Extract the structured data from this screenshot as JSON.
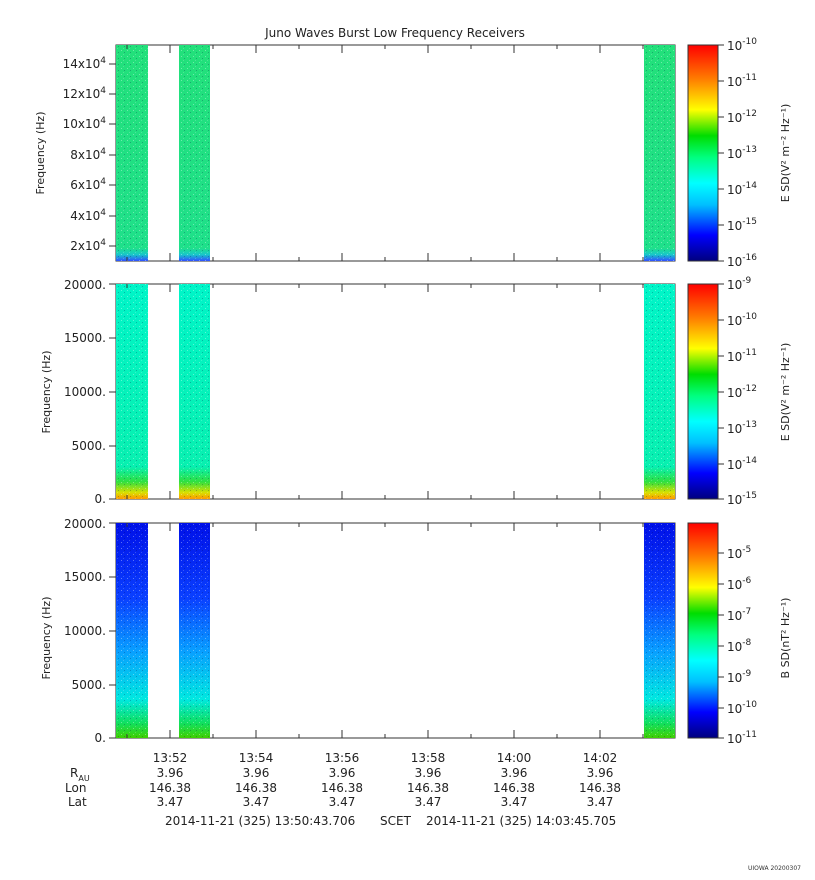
{
  "title": "Juno Waves Burst Low Frequency Receivers",
  "stamp": "UIOWA 20200307",
  "footer": {
    "start": "2014-11-21 (325) 13:50:43.706",
    "scet": "SCET",
    "end": "2014-11-21 (325) 14:03:45.705"
  },
  "ephemeris": {
    "labels": [
      "R_AU",
      "Lon",
      "Lat"
    ],
    "times": [
      "13:52",
      "13:54",
      "13:56",
      "13:58",
      "14:00",
      "14:02"
    ],
    "R_AU": [
      "3.96",
      "3.96",
      "3.96",
      "3.96",
      "3.96",
      "3.96"
    ],
    "Lon": [
      "146.38",
      "146.38",
      "146.38",
      "146.38",
      "146.38",
      "146.38"
    ],
    "Lat": [
      "3.47",
      "3.47",
      "3.47",
      "3.47",
      "3.47",
      "3.47"
    ]
  },
  "colors": {
    "colormap": [
      "#00007f",
      "#0000ff",
      "#00bfff",
      "#00ffff",
      "#00ff7f",
      "#00dd00",
      "#ffff00",
      "#ff7f00",
      "#ff0000"
    ]
  },
  "chart_data": [
    {
      "type": "heatmap",
      "panel": "E low-frequency top",
      "ylabel": "Frequency (Hz)",
      "y_ticks": [
        {
          "value": 20000,
          "mant": "2x10",
          "exp": "4"
        },
        {
          "value": 40000,
          "mant": "4x10",
          "exp": "4"
        },
        {
          "value": 60000,
          "mant": "6x10",
          "exp": "4"
        },
        {
          "value": 80000,
          "mant": "8x10",
          "exp": "4"
        },
        {
          "value": 100000,
          "mant": "10x10",
          "exp": "4"
        },
        {
          "value": 120000,
          "mant": "12x10",
          "exp": "4"
        },
        {
          "value": 140000,
          "mant": "14x10",
          "exp": "4"
        }
      ],
      "ylim": [
        10000,
        150000
      ],
      "x_range": [
        "13:50:43.706",
        "14:03:45.705"
      ],
      "colorbar_label": "E SD(V² m⁻² Hz⁻¹)",
      "colorbar_range": [
        -16,
        -10
      ],
      "colorbar_ticks": [
        "-10",
        "-11",
        "-12",
        "-13",
        "-14",
        "-15",
        "-16"
      ],
      "data_blocks": [
        {
          "start": "13:50:43.706",
          "end": "13:51:28",
          "dominant_level": "1e-13.5",
          "low_band": "blue"
        },
        {
          "start": "13:52:12",
          "end": "13:52:56",
          "dominant_level": "1e-13.5",
          "low_band": "blue"
        },
        {
          "start": "14:03:01",
          "end": "14:03:45.705",
          "dominant_level": "1e-13.5",
          "low_band": "blue"
        }
      ]
    },
    {
      "type": "heatmap",
      "panel": "E low-frequency middle",
      "ylabel": "Frequency (Hz)",
      "y_ticks": [
        "0.",
        "5000.",
        "10000.",
        "15000.",
        "20000."
      ],
      "ylim": [
        0,
        20000
      ],
      "x_range": [
        "13:50:43.706",
        "14:03:45.705"
      ],
      "colorbar_label": "E SD(V² m⁻² Hz⁻¹)",
      "colorbar_range": [
        -15,
        -9
      ],
      "colorbar_ticks": [
        "-9",
        "-10",
        "-11",
        "-12",
        "-13",
        "-14",
        "-15"
      ],
      "data_blocks": [
        {
          "start": "13:50:43.706",
          "end": "13:51:28",
          "dominant_level": "1e-13",
          "low_band": "yellow/orange"
        },
        {
          "start": "13:52:12",
          "end": "13:52:56",
          "dominant_level": "1e-13",
          "low_band": "yellow/orange"
        },
        {
          "start": "14:03:01",
          "end": "14:03:45.705",
          "dominant_level": "1e-13",
          "low_band": "yellow/orange"
        }
      ]
    },
    {
      "type": "heatmap",
      "panel": "B low-frequency",
      "ylabel": "Frequency (Hz)",
      "y_ticks": [
        "0.",
        "5000.",
        "10000.",
        "15000.",
        "20000."
      ],
      "ylim": [
        0,
        20000
      ],
      "x_range": [
        "13:50:43.706",
        "14:03:45.705"
      ],
      "x_ticks": [
        "13:52",
        "13:54",
        "13:56",
        "13:58",
        "14:00",
        "14:02"
      ],
      "colorbar_label": "B SD(nT² Hz⁻¹)",
      "colorbar_range": [
        -11,
        -4
      ],
      "colorbar_ticks": [
        "-5",
        "-6",
        "-7",
        "-8",
        "-9",
        "-10",
        "-11"
      ],
      "data_blocks": [
        {
          "start": "13:50:43.706",
          "end": "13:51:28",
          "dominant_level": "1e-10 (top) to 1e-8 (bottom)",
          "low_band": "green"
        },
        {
          "start": "13:52:12",
          "end": "13:52:56",
          "dominant_level": "1e-10 (top) to 1e-8 (bottom)",
          "low_band": "green"
        },
        {
          "start": "14:03:01",
          "end": "14:03:45.705",
          "dominant_level": "1e-10 (top) to 1e-8 (bottom)",
          "low_band": "green"
        }
      ]
    }
  ]
}
